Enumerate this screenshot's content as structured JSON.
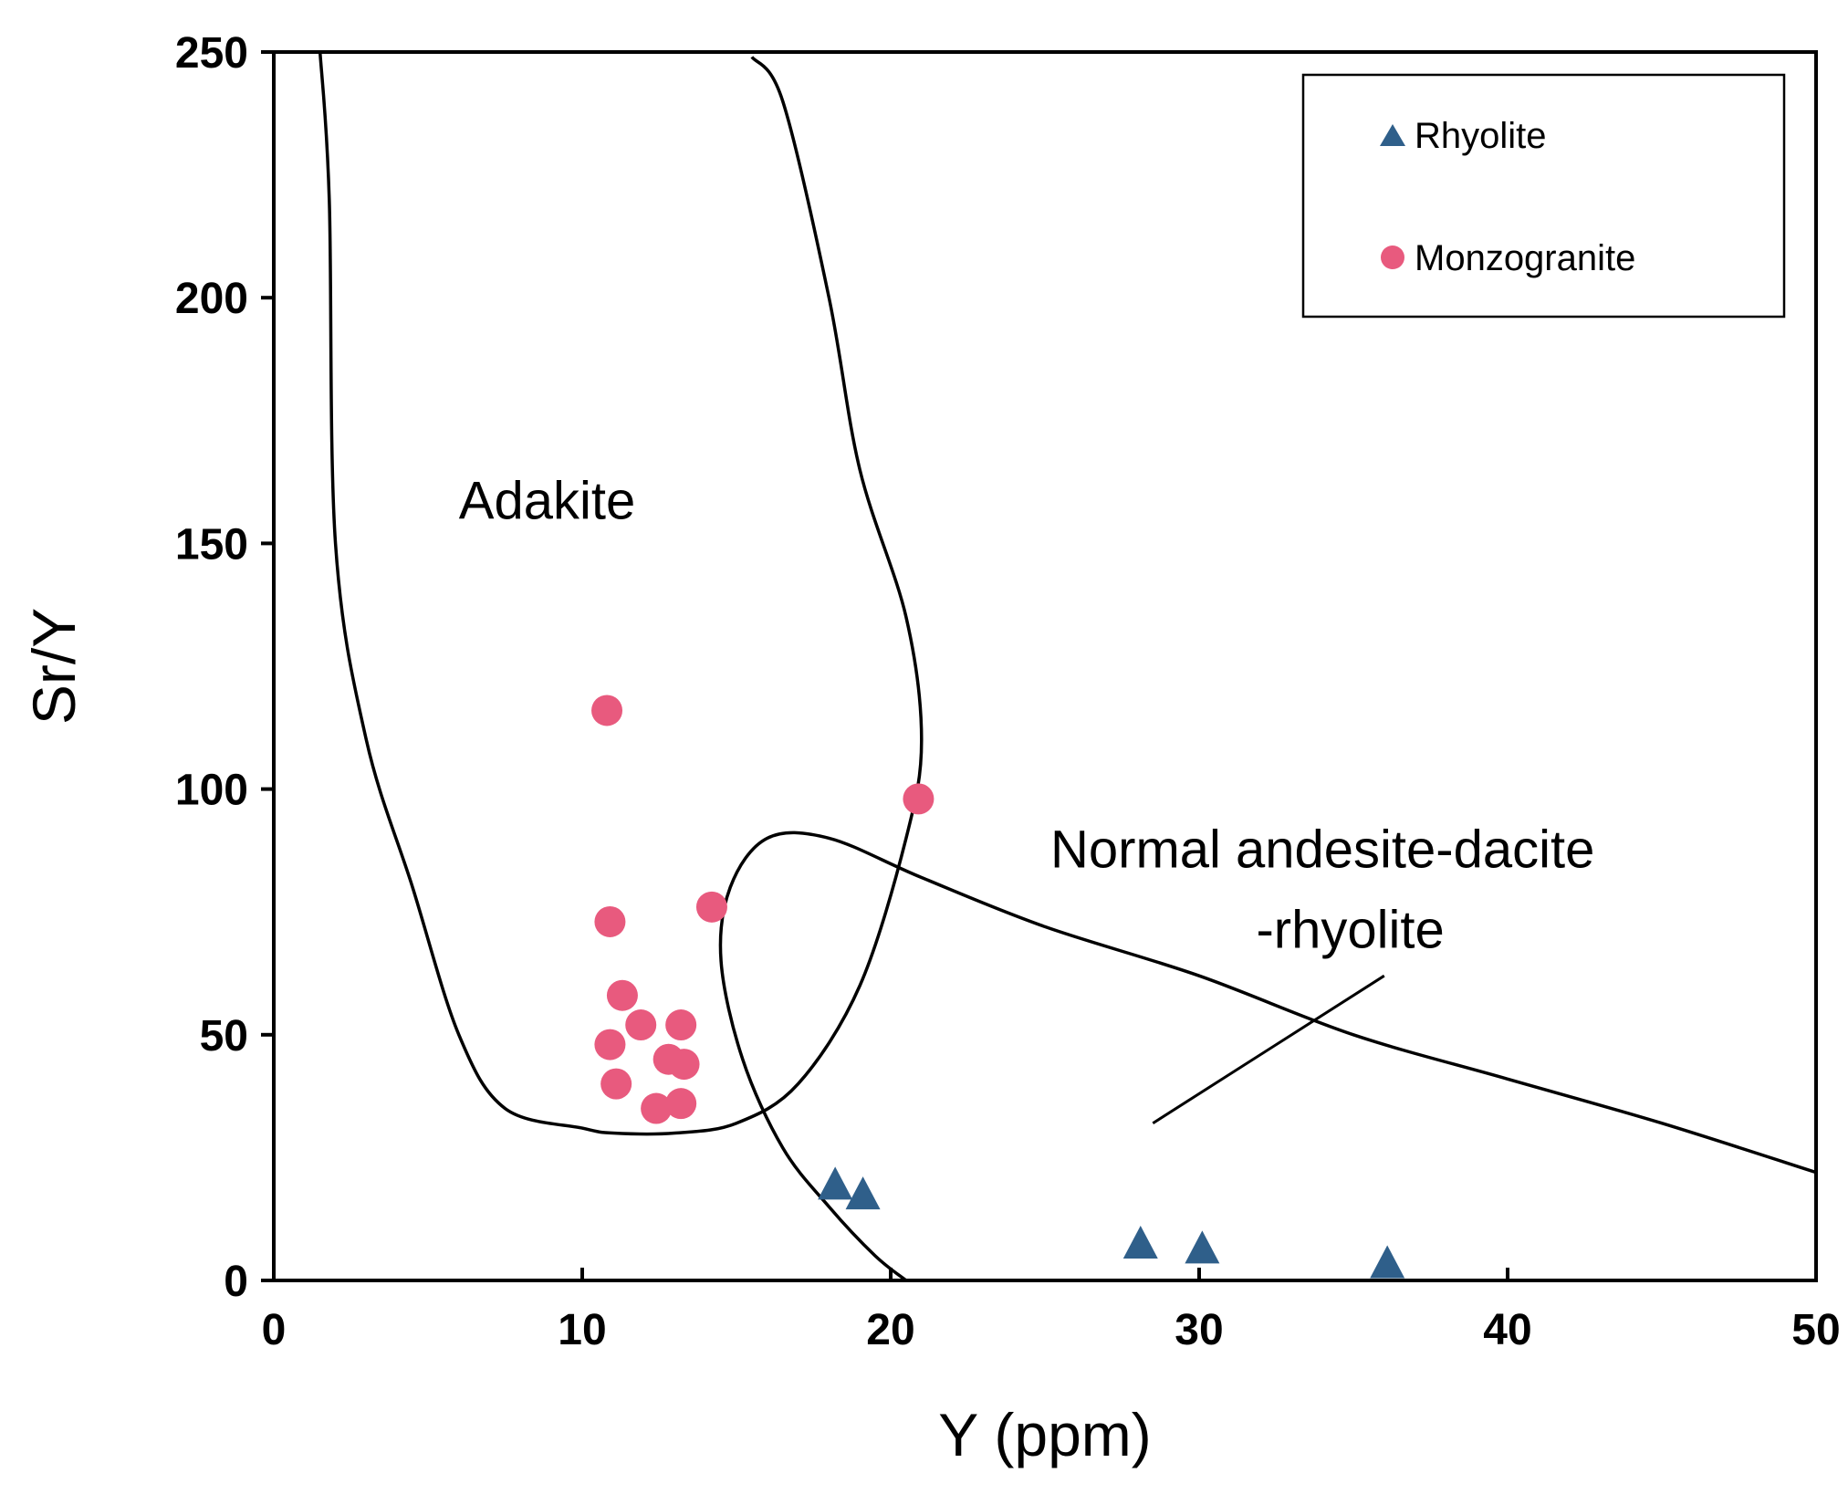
{
  "chart_data": {
    "type": "scatter",
    "title": "",
    "xlabel": "Y (ppm)",
    "ylabel": "Sr/Y",
    "xlim": [
      0,
      50
    ],
    "ylim": [
      0,
      250
    ],
    "xticks": [
      0,
      10,
      20,
      30,
      40,
      50
    ],
    "yticks": [
      0,
      50,
      100,
      150,
      200,
      250
    ],
    "xtick_labels": [
      "0",
      "10",
      "20",
      "30",
      "40",
      "50"
    ],
    "ytick_labels": [
      "0",
      "50",
      "100",
      "150",
      "200",
      "250"
    ],
    "grid": false,
    "legend_position": "top-right",
    "series": [
      {
        "name": "Rhyolite",
        "marker": "triangle",
        "color": "#2f5f8a",
        "points": [
          [
            18.2,
            19
          ],
          [
            19.1,
            17
          ],
          [
            28.1,
            7
          ],
          [
            30.1,
            6
          ],
          [
            36.1,
            3
          ]
        ]
      },
      {
        "name": "Monzogranite",
        "marker": "circle",
        "color": "#e85a7e",
        "points": [
          [
            10.8,
            116
          ],
          [
            20.9,
            98
          ],
          [
            10.9,
            73
          ],
          [
            14.2,
            76
          ],
          [
            11.3,
            58
          ],
          [
            11.9,
            52
          ],
          [
            13.2,
            52
          ],
          [
            10.9,
            48
          ],
          [
            12.8,
            45
          ],
          [
            13.3,
            44
          ],
          [
            11.1,
            40
          ],
          [
            12.4,
            35
          ],
          [
            13.2,
            36
          ]
        ]
      }
    ],
    "regions": [
      {
        "name": "Adakite",
        "label": "Adakite",
        "label_at": [
          6,
          155
        ],
        "boundary": [
          [
            1.5,
            250
          ],
          [
            1.8,
            220
          ],
          [
            2,
            150
          ],
          [
            3,
            110
          ],
          [
            4.5,
            80
          ],
          [
            6,
            50
          ],
          [
            7.5,
            35
          ],
          [
            10,
            31
          ],
          [
            11,
            30
          ],
          [
            13,
            30
          ],
          [
            15,
            32
          ],
          [
            17,
            40
          ],
          [
            19,
            60
          ],
          [
            20.5,
            90
          ],
          [
            21,
            110
          ],
          [
            20.5,
            135
          ],
          [
            19,
            165
          ],
          [
            18,
            200
          ],
          [
            16.5,
            240
          ],
          [
            15.5,
            249
          ]
        ],
        "closed": false
      },
      {
        "name": "Normal andesite-dacite-rhyolite",
        "label_line1": "Normal andesite-dacite",
        "label_line2": "-rhyolite",
        "label_at": [
          34,
          84
        ],
        "boundary": [
          [
            20.5,
            0
          ],
          [
            19.5,
            5
          ],
          [
            18,
            15
          ],
          [
            16.5,
            27
          ],
          [
            15.2,
            45
          ],
          [
            14.5,
            65
          ],
          [
            14.8,
            80
          ],
          [
            16,
            90
          ],
          [
            18,
            90
          ],
          [
            21,
            82
          ],
          [
            25,
            72
          ],
          [
            30,
            62
          ],
          [
            35,
            50
          ],
          [
            40,
            41
          ],
          [
            45,
            32
          ],
          [
            50,
            22
          ]
        ],
        "closed": false
      }
    ],
    "annotations": [
      {
        "type": "leader_line",
        "from": [
          28.5,
          32
        ],
        "to": [
          36,
          62
        ]
      }
    ]
  }
}
